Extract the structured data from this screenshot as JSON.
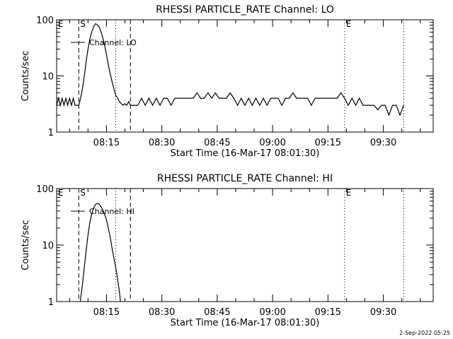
{
  "chart_data": [
    {
      "type": "line",
      "title": "RHESSI PARTICLE_RATE Channel: LO",
      "xlabel": "Start Time (16-Mar-17 08:01:30)",
      "ylabel": "Counts/sec",
      "yscale": "log",
      "ylim": [
        1,
        100
      ],
      "xlim_minutes": [
        0,
        102
      ],
      "x_ticks": [
        "08:15",
        "08:30",
        "08:45",
        "09:00",
        "09:15",
        "09:30"
      ],
      "y_ticks": [
        "1",
        "10",
        "100"
      ],
      "legend": "Channel: LO",
      "legend_position": "top-left",
      "markers": [
        {
          "label": "E",
          "minute": 0,
          "style": "none"
        },
        {
          "label": "S",
          "minute": 6,
          "style": "dashed"
        },
        {
          "label": "",
          "minute": 16,
          "style": "dotted"
        },
        {
          "label": "",
          "minute": 20,
          "style": "dashed"
        },
        {
          "label": "E",
          "minute": 78,
          "style": "dotted"
        },
        {
          "label": "",
          "minute": 94,
          "style": "dotted"
        }
      ],
      "series": [
        {
          "x": [
            0,
            0.5,
            1,
            1.5,
            2,
            2.5,
            3,
            3.5,
            4,
            4.5,
            5,
            5.5,
            6,
            6.5,
            7,
            7.5,
            8,
            8.5,
            9,
            9.5,
            10,
            10.5,
            11,
            11.5,
            12,
            12.5,
            13,
            13.5,
            14,
            14.5,
            15,
            15.5,
            16,
            16.5,
            17,
            17.5,
            18,
            18.5,
            19,
            19.5,
            20,
            21,
            22,
            23,
            24,
            25,
            26,
            27,
            28,
            29,
            30,
            31,
            32,
            33,
            34,
            35,
            36,
            37,
            38,
            39,
            40,
            41,
            42,
            43,
            44,
            45,
            46,
            47,
            48,
            49,
            50,
            51,
            52,
            53,
            54,
            55,
            56,
            57,
            58,
            59,
            60,
            61,
            62,
            63,
            64,
            65,
            66,
            67,
            68,
            69,
            70,
            71,
            72,
            73,
            74,
            75,
            76,
            77,
            78,
            79,
            80,
            81,
            82,
            83,
            84,
            85,
            86,
            87,
            88,
            89,
            90,
            91,
            92,
            93,
            94
          ],
          "y": [
            3,
            4,
            3,
            4,
            3,
            4,
            3,
            4,
            3,
            4,
            3,
            3,
            3,
            4,
            6,
            10,
            18,
            30,
            45,
            60,
            75,
            85,
            82,
            75,
            62,
            48,
            35,
            24,
            16,
            11,
            8,
            6,
            4.5,
            4,
            3.5,
            3.2,
            3,
            3.2,
            3,
            3.5,
            3,
            3,
            3,
            4,
            3,
            4,
            3,
            4,
            3,
            4,
            4,
            3,
            4,
            4,
            4,
            4,
            4,
            4,
            5,
            4,
            4,
            5,
            4,
            5,
            4,
            4,
            4,
            5,
            4,
            3,
            4,
            3,
            4,
            3,
            4,
            3,
            4,
            3,
            4,
            4,
            4,
            3,
            4,
            4,
            5,
            4,
            4,
            4,
            4,
            3,
            4,
            4,
            4,
            4,
            4,
            4,
            4,
            5,
            4,
            3,
            4,
            3,
            4,
            3,
            3,
            3,
            3,
            2.5,
            3,
            3,
            2,
            3,
            3,
            2,
            3
          ]
        }
      ]
    },
    {
      "type": "line",
      "title": "RHESSI PARTICLE_RATE Channel: HI",
      "xlabel": "Start Time (16-Mar-17 08:01:30)",
      "ylabel": "Counts/sec",
      "yscale": "log",
      "ylim": [
        1,
        100
      ],
      "xlim_minutes": [
        0,
        102
      ],
      "x_ticks": [
        "08:15",
        "08:30",
        "08:45",
        "09:00",
        "09:15",
        "09:30"
      ],
      "y_ticks": [
        "1",
        "10",
        "100"
      ],
      "legend": "Channel: HI",
      "legend_position": "top-left",
      "markers": [
        {
          "label": "E",
          "minute": 0,
          "style": "none"
        },
        {
          "label": "S",
          "minute": 6,
          "style": "dashed"
        },
        {
          "label": "",
          "minute": 16,
          "style": "dotted"
        },
        {
          "label": "",
          "minute": 20,
          "style": "dashed"
        },
        {
          "label": "E",
          "minute": 78,
          "style": "dotted"
        },
        {
          "label": "",
          "minute": 94,
          "style": "dotted"
        }
      ],
      "series": [
        {
          "x": [
            6.4,
            7,
            7.5,
            8,
            8.5,
            9,
            9.5,
            10,
            10.5,
            11,
            11.5,
            12,
            12.5,
            13,
            13.5,
            14,
            14.5,
            15,
            15.5,
            16,
            16.5,
            17,
            17.3
          ],
          "y": [
            1,
            2,
            4,
            8,
            15,
            25,
            35,
            45,
            52,
            55,
            53,
            48,
            42,
            35,
            28,
            20,
            14,
            9,
            6,
            4,
            2.5,
            1.5,
            1
          ]
        }
      ]
    }
  ],
  "footer": {
    "timestamp": "2-Sep-2022 05:25"
  }
}
